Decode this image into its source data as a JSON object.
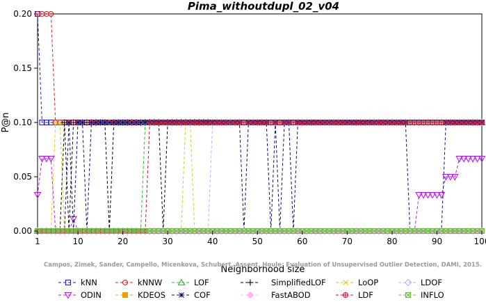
{
  "chart_data": {
    "type": "line",
    "title": "Pima_withoutdupl_02_v04",
    "xlabel": "Neighborhood size",
    "ylabel": "P@n",
    "xlim": [
      1,
      100
    ],
    "ylim": [
      0,
      0.2
    ],
    "x_ticks": [
      1,
      10,
      20,
      30,
      40,
      50,
      60,
      70,
      80,
      90,
      100
    ],
    "y_ticks": [
      "0.00",
      "0.05",
      "0.10",
      "0.15",
      "0.20"
    ],
    "grid": false,
    "legend_position": "bottom",
    "credit": "Campos, Zimek, Sander, Campello, Micenkova, Schubert, Assent, Houle: Evaluation of Unsupervised Outlier Detection, DAMI, 2015.",
    "series": [
      {
        "name": "kNN",
        "color": "#1f1fbf",
        "marker": "square",
        "points": [
          [
            1,
            0.2
          ],
          [
            2,
            0.1
          ],
          [
            100,
            0.1
          ]
        ]
      },
      {
        "name": "kNNW",
        "color": "#e41a1c",
        "marker": "circle",
        "points": [
          [
            1,
            0.2
          ],
          [
            4,
            0.2
          ],
          [
            5,
            0.1
          ],
          [
            100,
            0.1
          ]
        ]
      },
      {
        "name": "LOF",
        "color": "#1fbf1f",
        "marker": "triangle-up",
        "points": [
          [
            1,
            0
          ],
          [
            24,
            0
          ],
          [
            25,
            0.1
          ],
          [
            100,
            0.1
          ]
        ]
      },
      {
        "name": "SimplifiedLOF",
        "color": "#000000",
        "marker": "plus",
        "points": [
          [
            1,
            0
          ],
          [
            6,
            0
          ],
          [
            7,
            0.1
          ],
          [
            8,
            0
          ],
          [
            9,
            0.1
          ],
          [
            16,
            0.1
          ],
          [
            17,
            0
          ],
          [
            18,
            0.1
          ],
          [
            28,
            0.1
          ],
          [
            29,
            0
          ],
          [
            30,
            0.1
          ],
          [
            100,
            0.1
          ]
        ]
      },
      {
        "name": "LoOP",
        "color": "#e6c619",
        "marker": "cross",
        "points": [
          [
            1,
            0
          ],
          [
            4,
            0
          ],
          [
            5,
            0.1
          ],
          [
            6,
            0.1
          ],
          [
            7,
            0
          ],
          [
            33,
            0
          ],
          [
            34,
            0.1
          ],
          [
            35,
            0.1
          ],
          [
            36,
            0
          ],
          [
            100,
            0
          ]
        ]
      },
      {
        "name": "LDOF",
        "color": "#b3b3ff",
        "marker": "diamond",
        "points": [
          [
            1,
            0
          ],
          [
            39,
            0
          ],
          [
            40,
            0.1
          ],
          [
            100,
            0.1
          ]
        ]
      },
      {
        "name": "ODIN",
        "color": "#b31fe6",
        "marker": "triangle-down",
        "points": [
          [
            1,
            0.0333
          ],
          [
            2,
            0.0667
          ],
          [
            3,
            0.0667
          ],
          [
            4,
            0.0667
          ],
          [
            5,
            0
          ],
          [
            8,
            0
          ],
          [
            9,
            0.0111
          ],
          [
            10,
            0
          ],
          [
            85,
            0
          ],
          [
            86,
            0.0333
          ],
          [
            91,
            0.0333
          ],
          [
            92,
            0.05
          ],
          [
            94,
            0.05
          ],
          [
            95,
            0.0667
          ],
          [
            100,
            0.0667
          ]
        ]
      },
      {
        "name": "KDEOS",
        "color": "#f2a100",
        "marker": "square-filled",
        "points": [
          [
            1,
            0
          ],
          [
            100,
            0
          ]
        ]
      },
      {
        "name": "COF",
        "color": "#0a0a6e",
        "marker": "star",
        "points": [
          [
            1,
            0
          ],
          [
            7,
            0
          ],
          [
            8,
            0.1
          ],
          [
            9,
            0
          ],
          [
            10,
            0.1
          ],
          [
            11,
            0.1
          ],
          [
            12,
            0
          ],
          [
            13,
            0.1
          ],
          [
            46,
            0.1
          ],
          [
            47,
            0
          ],
          [
            48,
            0.1
          ],
          [
            52,
            0.1
          ],
          [
            53,
            0
          ],
          [
            54,
            0.1
          ],
          [
            55,
            0
          ],
          [
            56,
            0.1
          ],
          [
            57,
            0.1
          ],
          [
            58,
            0
          ],
          [
            59,
            0.1
          ],
          [
            83,
            0.1
          ],
          [
            84,
            0
          ],
          [
            91,
            0
          ],
          [
            92,
            0.1
          ],
          [
            100,
            0.1
          ]
        ]
      },
      {
        "name": "FastABOD",
        "color": "#ffb3ff",
        "marker": "diamond-filled",
        "points": [
          [
            1,
            0
          ],
          [
            100,
            0
          ]
        ]
      },
      {
        "name": "LDF",
        "color": "#c8102e",
        "marker": "circle-cross",
        "points": [
          [
            1,
            0
          ],
          [
            25,
            0
          ],
          [
            26,
            0.1
          ],
          [
            100,
            0.1
          ]
        ]
      },
      {
        "name": "INFLO",
        "color": "#6abf3c",
        "marker": "square-x",
        "points": [
          [
            1,
            0
          ],
          [
            100,
            0
          ]
        ]
      }
    ]
  }
}
